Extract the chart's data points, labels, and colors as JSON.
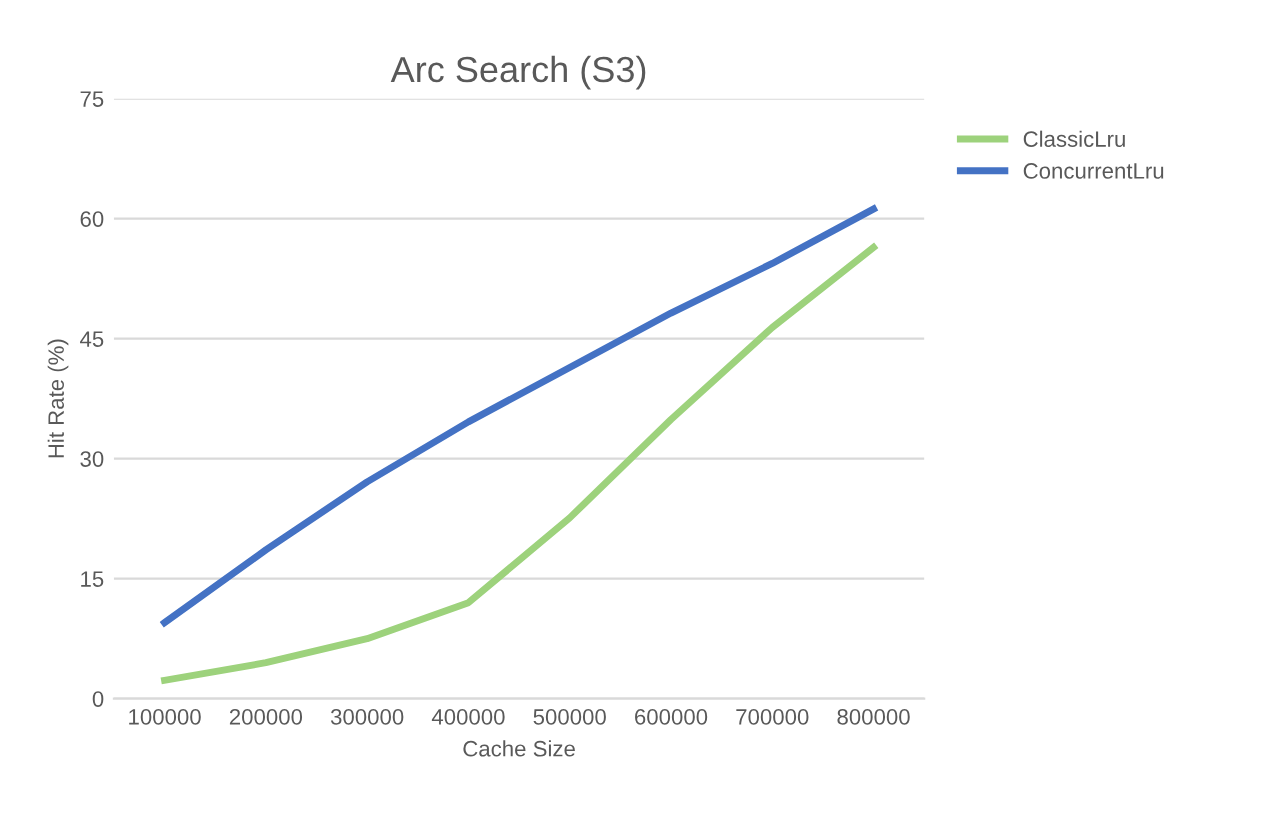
{
  "chart_data": {
    "type": "line",
    "title": "Arc Search (S3)",
    "xlabel": "Cache Size",
    "ylabel": "Hit Rate (%)",
    "categories": [
      "100000",
      "200000",
      "300000",
      "400000",
      "500000",
      "600000",
      "700000",
      "800000"
    ],
    "series": [
      {
        "name": "ClassicLru",
        "color": "#9dd27c",
        "values": [
          2.3,
          4.5,
          7.5,
          12.0,
          22.6,
          34.9,
          46.4,
          56.4
        ]
      },
      {
        "name": "ConcurrentLru",
        "color": "#4472c4",
        "values": [
          9.5,
          18.6,
          27.1,
          34.6,
          41.4,
          48.2,
          54.4,
          61.2
        ]
      }
    ],
    "ylim": [
      0,
      75
    ],
    "yticks": [
      0,
      15,
      30,
      45,
      60,
      75
    ],
    "grid": "y",
    "legend": "right",
    "marker": "none",
    "line_style": "solid"
  }
}
